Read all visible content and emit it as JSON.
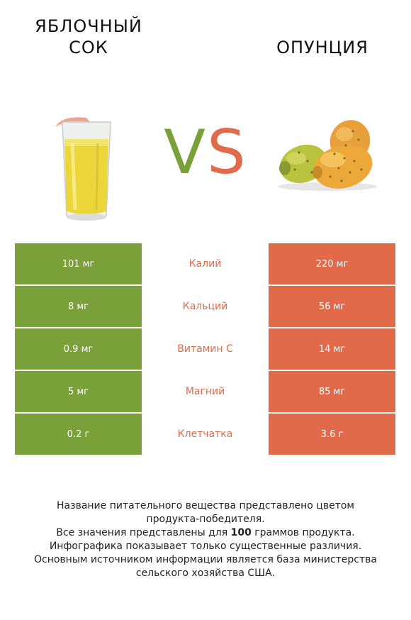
{
  "left_item": {
    "title_line1": "Яблочный",
    "title_line2": "сок"
  },
  "right_item": {
    "title": "Опунция"
  },
  "vs": {
    "v": "V",
    "s": "S"
  },
  "colors": {
    "left": "#7aa03a",
    "right": "#e06a4a"
  },
  "rows": [
    {
      "left": "101 мг",
      "nutrient": "Калий",
      "right": "220 мг"
    },
    {
      "left": "8 мг",
      "nutrient": "Кальций",
      "right": "56 мг"
    },
    {
      "left": "0.9 мг",
      "nutrient": "Витамин C",
      "right": "14 мг"
    },
    {
      "left": "5 мг",
      "nutrient": "Магний",
      "right": "85 мг"
    },
    {
      "left": "0.2 г",
      "nutrient": "Клетчатка",
      "right": "3.6 г"
    }
  ],
  "footnote": {
    "line1": "Название питательного вещества представлено цветом",
    "line2": "продукта-победителя.",
    "line3_pre": "Все значения представлены для ",
    "line3_bold": "100",
    "line3_post": " граммов продукта.",
    "line4": "Инфографика показывает только существенные различия.",
    "line5": "Основным источником информации является база министерства",
    "line6": "сельского хозяйства США."
  }
}
